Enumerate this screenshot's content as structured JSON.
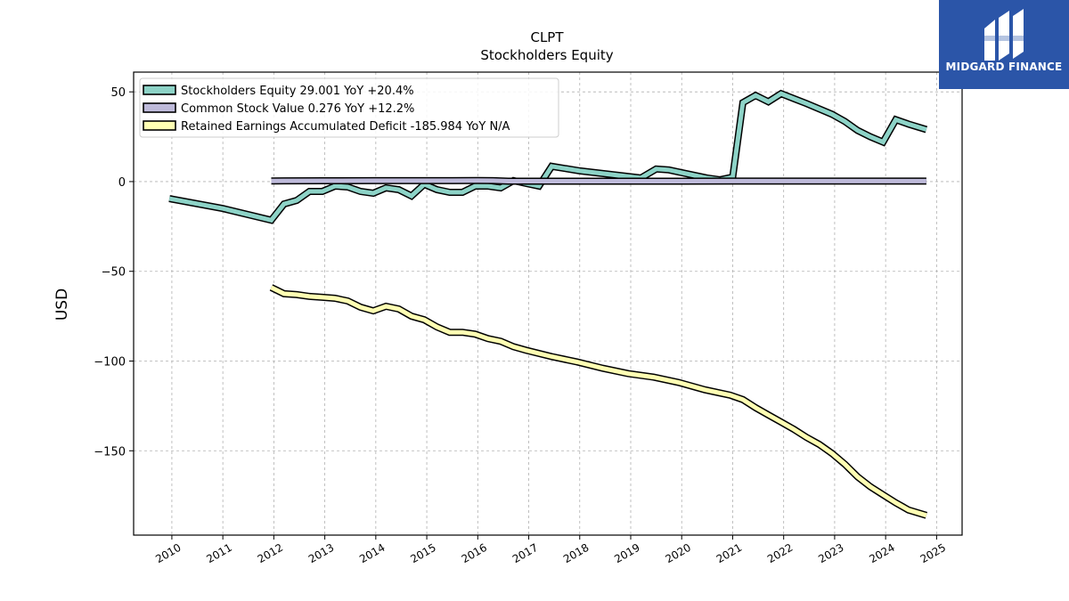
{
  "logo": {
    "text": "MIDGARD FINANCE",
    "color": "#2b55a8"
  },
  "chart_data": {
    "type": "line",
    "title": "CLPT",
    "subtitle": "Stockholders  Equity",
    "xlabel": "",
    "ylabel": "USD",
    "xlim": [
      2009.25,
      2025.5
    ],
    "ylim": [
      -197,
      61
    ],
    "x_ticks": [
      "2010",
      "2011",
      "2012",
      "2013",
      "2014",
      "2015",
      "2016",
      "2017",
      "2018",
      "2019",
      "2020",
      "2021",
      "2022",
      "2023",
      "2024",
      "2025"
    ],
    "y_ticks": [
      50,
      0,
      -50,
      -100,
      -150
    ],
    "y_tick_labels": [
      "50",
      "0",
      "−50",
      "−100",
      "−150"
    ],
    "grid": true,
    "legend_position": "top-left",
    "series": [
      {
        "name": "Stockholders Equity  29.001 YoY +20.4%",
        "color": "#8dd3c7",
        "x": [
          2009.95,
          2011.0,
          2011.95,
          2012.2,
          2012.45,
          2012.7,
          2012.95,
          2013.2,
          2013.45,
          2013.7,
          2013.95,
          2014.2,
          2014.45,
          2014.7,
          2014.95,
          2015.2,
          2015.45,
          2015.7,
          2015.95,
          2016.2,
          2016.45,
          2016.7,
          2016.95,
          2017.2,
          2017.45,
          2018.0,
          2019.2,
          2019.5,
          2019.75,
          2020.0,
          2020.25,
          2020.5,
          2020.75,
          2021.0,
          2021.2,
          2021.45,
          2021.7,
          2021.95,
          2022.45,
          2022.95,
          2023.2,
          2023.45,
          2023.7,
          2023.95,
          2024.2,
          2024.45,
          2024.8
        ],
        "y": [
          -9.5,
          -15.0,
          -21.5,
          -12.5,
          -10.5,
          -5.5,
          -5.5,
          -2.5,
          -3.0,
          -5.5,
          -6.5,
          -3.5,
          -4.5,
          -8.0,
          -1.5,
          -4.5,
          -6.0,
          -6.0,
          -2.5,
          -2.5,
          -3.5,
          0.5,
          -1.0,
          -2.5,
          8.5,
          6.0,
          2.0,
          7.0,
          6.5,
          5.0,
          3.5,
          2.0,
          1.0,
          2.5,
          44.0,
          48.0,
          44.5,
          49.0,
          43.5,
          37.5,
          33.5,
          28.5,
          25.0,
          22.0,
          34.5,
          32.0,
          29.0
        ]
      },
      {
        "name": "Common Stock Value  0.276 YoY +12.2%",
        "color": "#bebada",
        "x": [
          2011.95,
          2012.2,
          2013.0,
          2014.0,
          2015.0,
          2016.0,
          2016.3,
          2016.6,
          2017.0,
          2018.0,
          2019.0,
          2020.0,
          2021.0,
          2022.0,
          2023.0,
          2024.0,
          2024.8
        ],
        "y": [
          0.3,
          0.4,
          0.45,
          0.5,
          0.5,
          0.55,
          0.5,
          0.2,
          0.2,
          0.2,
          0.2,
          0.2,
          0.25,
          0.25,
          0.25,
          0.27,
          0.276
        ]
      },
      {
        "name": "Retained Earnings Accumulated Deficit  -185.984 YoY N/A",
        "color": "#ffffb3",
        "x": [
          2011.95,
          2012.2,
          2012.45,
          2012.7,
          2012.95,
          2013.2,
          2013.45,
          2013.7,
          2013.95,
          2014.2,
          2014.45,
          2014.7,
          2014.95,
          2015.2,
          2015.45,
          2015.7,
          2015.95,
          2016.2,
          2016.45,
          2016.7,
          2016.95,
          2017.45,
          2017.95,
          2018.45,
          2018.95,
          2019.45,
          2019.95,
          2020.45,
          2020.95,
          2021.2,
          2021.45,
          2021.7,
          2021.95,
          2022.2,
          2022.45,
          2022.7,
          2022.95,
          2023.2,
          2023.45,
          2023.7,
          2023.95,
          2024.2,
          2024.45,
          2024.8
        ],
        "y": [
          -59.0,
          -62.5,
          -63.0,
          -64.0,
          -64.5,
          -65.0,
          -66.5,
          -70.0,
          -72.0,
          -69.5,
          -71.0,
          -75.0,
          -77.0,
          -81.0,
          -84.0,
          -84.0,
          -85.0,
          -87.5,
          -89.0,
          -92.0,
          -94.0,
          -97.5,
          -100.5,
          -104.0,
          -107.0,
          -109.0,
          -112.0,
          -116.0,
          -119.0,
          -121.5,
          -126.0,
          -130.0,
          -134.0,
          -138.0,
          -142.5,
          -146.5,
          -151.5,
          -157.5,
          -164.5,
          -170.0,
          -174.5,
          -179.0,
          -183.0,
          -185.984
        ]
      }
    ]
  }
}
